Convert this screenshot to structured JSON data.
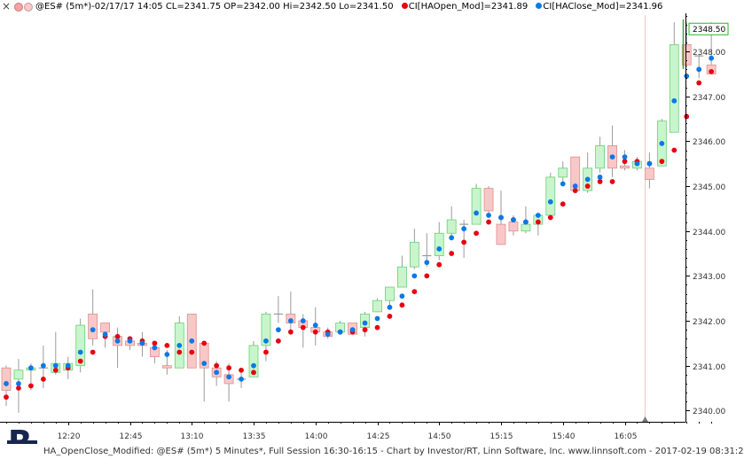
{
  "window": {
    "close_glyph": "×",
    "header_text": "@ES# (5m*)-02/17/17 14:05 CL=2341.75 OP=2342.00 Hi=2342.50 Lo=2341.50",
    "legend": [
      {
        "label": "CI[HAOpen_Mod]=2341.89",
        "color": "#e8000f"
      },
      {
        "label": "CI[HAClose_Mod]=2341.96",
        "color": "#0a79e6"
      }
    ],
    "footer_text": "HA_OpenClose_Modified: @ES# (5m*) 5 Minutes*, Full Session 16:30-16:15 - Chart by Investor/RT, Linn Software, Inc. www.linnsoft.com - 2017-02-19 08:31:2",
    "logo_letter": "R"
  },
  "colors": {
    "up_body": "#c8f5cc",
    "up_border": "#6ccf74",
    "down_body": "#f8c8c8",
    "down_border": "#e08c8c",
    "wick": "#9a9a9a",
    "ha_open_dot": "#e8000f",
    "ha_close_dot": "#0a79e6",
    "price_tag_border": "#2ab32a",
    "axis": "#000000",
    "tick_text": "#333333"
  },
  "chart_data": {
    "type": "candlestick",
    "x_tick_labels": [
      "12:20",
      "12:45",
      "13:10",
      "13:35",
      "14:00",
      "14:25",
      "14:50",
      "15:15",
      "15:40",
      "16:05"
    ],
    "y_tick_labels": [
      "2340.00",
      "2341.00",
      "2342.00",
      "2343.00",
      "2344.00",
      "2345.00",
      "2346.00",
      "2347.00",
      "2348.00"
    ],
    "ylim": [
      2339.75,
      2348.85
    ],
    "last_price_label": "2348.50",
    "series_names": [
      "CI[HAOpen_Mod]",
      "CI[HAClose_Mod]"
    ],
    "bars": [
      {
        "o": 2340.95,
        "c": 2340.45,
        "h": 2341.0,
        "l": 2340.1,
        "hao": 2340.3,
        "hac": 2340.6
      },
      {
        "o": 2340.7,
        "c": 2340.9,
        "h": 2341.15,
        "l": 2339.95,
        "hao": 2340.5,
        "hac": 2340.6
      },
      {
        "o": 2340.9,
        "c": 2340.95,
        "h": 2341.05,
        "l": 2340.45,
        "hao": 2340.55,
        "hac": 2340.95
      },
      {
        "o": 2340.95,
        "c": 2340.95,
        "h": 2341.45,
        "l": 2340.5,
        "hao": 2340.7,
        "hac": 2341.0
      },
      {
        "o": 2340.85,
        "c": 2341.05,
        "h": 2341.75,
        "l": 2340.8,
        "hao": 2340.9,
        "hac": 2341.0
      },
      {
        "o": 2340.9,
        "c": 2341.05,
        "h": 2341.2,
        "l": 2340.7,
        "hao": 2340.95,
        "hac": 2341.0
      },
      {
        "o": 2341.0,
        "c": 2341.9,
        "h": 2342.05,
        "l": 2340.85,
        "hao": 2341.1,
        "hac": 2341.3
      },
      {
        "o": 2342.15,
        "c": 2341.6,
        "h": 2342.7,
        "l": 2341.45,
        "hao": 2341.3,
        "hac": 2341.8
      },
      {
        "o": 2341.95,
        "c": 2341.75,
        "h": 2341.95,
        "l": 2341.4,
        "hao": 2341.65,
        "hac": 2341.7
      },
      {
        "o": 2341.65,
        "c": 2341.45,
        "h": 2341.85,
        "l": 2340.95,
        "hao": 2341.65,
        "hac": 2341.55
      },
      {
        "o": 2341.55,
        "c": 2341.45,
        "h": 2341.65,
        "l": 2341.35,
        "hao": 2341.6,
        "hac": 2341.55
      },
      {
        "o": 2341.5,
        "c": 2341.45,
        "h": 2341.75,
        "l": 2341.2,
        "hao": 2341.55,
        "hac": 2341.5
      },
      {
        "o": 2341.4,
        "c": 2341.2,
        "h": 2341.55,
        "l": 2341.05,
        "hao": 2341.5,
        "hac": 2341.4
      },
      {
        "o": 2341.0,
        "c": 2340.95,
        "h": 2341.35,
        "l": 2340.8,
        "hao": 2341.45,
        "hac": 2341.25
      },
      {
        "o": 2340.95,
        "c": 2341.95,
        "h": 2342.1,
        "l": 2340.95,
        "hao": 2341.3,
        "hac": 2341.45
      },
      {
        "o": 2342.15,
        "c": 2340.95,
        "h": 2342.15,
        "l": 2340.95,
        "hao": 2341.3,
        "hac": 2341.55
      },
      {
        "o": 2341.5,
        "c": 2340.95,
        "h": 2341.5,
        "l": 2340.2,
        "hao": 2341.5,
        "hac": 2341.05
      },
      {
        "o": 2340.95,
        "c": 2340.75,
        "h": 2341.1,
        "l": 2340.55,
        "hao": 2341.0,
        "hac": 2340.85
      },
      {
        "o": 2340.8,
        "c": 2340.6,
        "h": 2341.05,
        "l": 2340.2,
        "hao": 2340.95,
        "hac": 2340.75
      },
      {
        "o": 2340.7,
        "c": 2340.7,
        "h": 2340.9,
        "l": 2340.5,
        "hao": 2340.9,
        "hac": 2340.7
      },
      {
        "o": 2340.75,
        "c": 2341.45,
        "h": 2341.55,
        "l": 2340.75,
        "hao": 2340.85,
        "hac": 2341.0
      },
      {
        "o": 2341.45,
        "c": 2342.15,
        "h": 2342.2,
        "l": 2341.1,
        "hao": 2341.3,
        "hac": 2341.55
      },
      {
        "o": 2342.15,
        "c": 2342.15,
        "h": 2342.55,
        "l": 2341.95,
        "hao": 2341.55,
        "hac": 2341.8
      },
      {
        "o": 2342.15,
        "c": 2341.95,
        "h": 2342.65,
        "l": 2341.75,
        "hao": 2341.75,
        "hac": 2342.0
      },
      {
        "o": 2342.0,
        "c": 2341.85,
        "h": 2342.15,
        "l": 2341.4,
        "hao": 2341.85,
        "hac": 2342.0
      },
      {
        "o": 2341.85,
        "c": 2341.75,
        "h": 2342.3,
        "l": 2341.45,
        "hao": 2341.75,
        "hac": 2341.9
      },
      {
        "o": 2341.75,
        "c": 2341.65,
        "h": 2341.85,
        "l": 2341.6,
        "hao": 2341.75,
        "hac": 2341.7
      },
      {
        "o": 2341.75,
        "c": 2341.95,
        "h": 2342.0,
        "l": 2341.75,
        "hao": 2341.75,
        "hac": 2341.75
      },
      {
        "o": 2341.95,
        "c": 2341.7,
        "h": 2341.95,
        "l": 2341.7,
        "hao": 2341.75,
        "hac": 2341.8
      },
      {
        "o": 2341.85,
        "c": 2342.15,
        "h": 2342.2,
        "l": 2341.65,
        "hao": 2341.8,
        "hac": 2341.95
      },
      {
        "o": 2342.2,
        "c": 2342.45,
        "h": 2342.5,
        "l": 2342.2,
        "hao": 2341.85,
        "hac": 2342.05
      },
      {
        "o": 2342.45,
        "c": 2342.75,
        "h": 2342.75,
        "l": 2342.35,
        "hao": 2342.1,
        "hac": 2342.3
      },
      {
        "o": 2342.75,
        "c": 2343.2,
        "h": 2343.45,
        "l": 2342.75,
        "hao": 2342.35,
        "hac": 2342.55
      },
      {
        "o": 2343.2,
        "c": 2343.75,
        "h": 2344.05,
        "l": 2343.15,
        "hao": 2342.65,
        "hac": 2343.0
      },
      {
        "o": 2343.45,
        "c": 2343.45,
        "h": 2343.95,
        "l": 2343.2,
        "hao": 2343.0,
        "hac": 2343.3
      },
      {
        "o": 2343.45,
        "c": 2343.95,
        "h": 2344.2,
        "l": 2343.35,
        "hao": 2343.25,
        "hac": 2343.6
      },
      {
        "o": 2343.95,
        "c": 2344.25,
        "h": 2344.55,
        "l": 2343.9,
        "hao": 2343.5,
        "hac": 2343.85
      },
      {
        "o": 2344.15,
        "c": 2344.15,
        "h": 2344.25,
        "l": 2343.4,
        "hao": 2343.75,
        "hac": 2344.05
      },
      {
        "o": 2344.15,
        "c": 2344.95,
        "h": 2345.05,
        "l": 2344.15,
        "hao": 2343.95,
        "hac": 2344.4
      },
      {
        "o": 2344.95,
        "c": 2344.45,
        "h": 2345.0,
        "l": 2344.35,
        "hao": 2344.2,
        "hac": 2344.35
      },
      {
        "o": 2344.15,
        "c": 2343.7,
        "h": 2344.9,
        "l": 2343.7,
        "hao": 2344.3,
        "hac": 2344.3
      },
      {
        "o": 2344.2,
        "c": 2344.0,
        "h": 2344.35,
        "l": 2343.9,
        "hao": 2344.25,
        "hac": 2344.25
      },
      {
        "o": 2344.0,
        "c": 2344.15,
        "h": 2344.55,
        "l": 2343.95,
        "hao": 2344.2,
        "hac": 2344.2
      },
      {
        "o": 2344.15,
        "c": 2344.35,
        "h": 2344.4,
        "l": 2343.9,
        "hao": 2344.2,
        "hac": 2344.35
      },
      {
        "o": 2344.35,
        "c": 2345.2,
        "h": 2345.3,
        "l": 2344.35,
        "hao": 2344.3,
        "hac": 2344.65
      },
      {
        "o": 2345.2,
        "c": 2345.4,
        "h": 2345.55,
        "l": 2345.05,
        "hao": 2344.6,
        "hac": 2345.05
      },
      {
        "o": 2345.65,
        "c": 2344.9,
        "h": 2345.65,
        "l": 2344.85,
        "hao": 2344.9,
        "hac": 2345.0
      },
      {
        "o": 2344.9,
        "c": 2345.4,
        "h": 2345.75,
        "l": 2344.85,
        "hao": 2345.0,
        "hac": 2345.15
      },
      {
        "o": 2345.4,
        "c": 2345.9,
        "h": 2346.1,
        "l": 2345.3,
        "hao": 2345.1,
        "hac": 2345.2
      },
      {
        "o": 2345.9,
        "c": 2345.4,
        "h": 2346.35,
        "l": 2345.2,
        "hao": 2345.1,
        "hac": 2345.65
      },
      {
        "o": 2345.45,
        "c": 2345.4,
        "h": 2345.8,
        "l": 2345.35,
        "hao": 2345.55,
        "hac": 2345.65
      },
      {
        "o": 2345.4,
        "c": 2345.55,
        "h": 2345.65,
        "l": 2345.35,
        "hao": 2345.55,
        "hac": 2345.5
      },
      {
        "o": 2345.4,
        "c": 2345.15,
        "h": 2345.75,
        "l": 2344.95,
        "hao": 2345.5,
        "hac": 2345.5
      },
      {
        "o": 2345.45,
        "c": 2346.45,
        "h": 2346.5,
        "l": 2345.45,
        "hao": 2345.55,
        "hac": 2345.95
      },
      {
        "o": 2346.2,
        "c": 2348.15,
        "h": 2348.65,
        "l": 2346.2,
        "hao": 2345.8,
        "hac": 2346.9
      },
      {
        "o": 2348.15,
        "c": 2347.7,
        "h": 2348.65,
        "l": 2347.65,
        "hao": 2346.55,
        "hac": 2347.45
      },
      {
        "o": 2347.9,
        "c": 2347.9,
        "h": 2347.95,
        "l": 2347.4,
        "hao": 2347.3,
        "hac": 2347.6
      },
      {
        "o": 2347.7,
        "c": 2347.5,
        "h": 2348.65,
        "l": 2347.5,
        "hao": 2347.55,
        "hac": 2347.85
      }
    ]
  }
}
